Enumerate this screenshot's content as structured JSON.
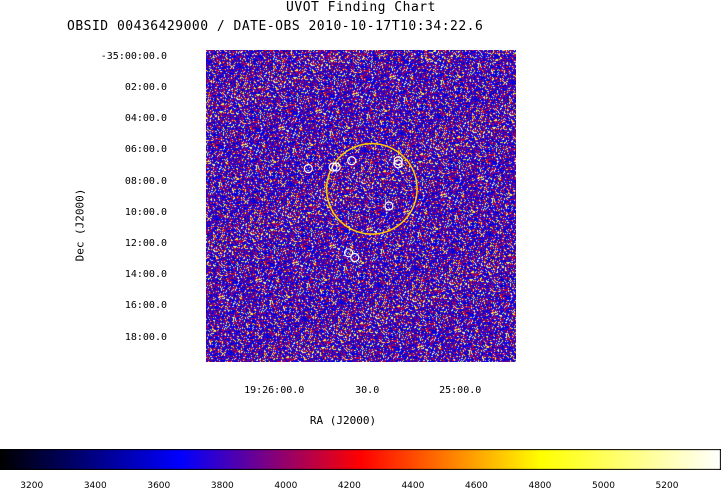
{
  "chart_data": {
    "type": "heatmap",
    "title": "UVOT Finding Chart",
    "subtitle": "OBSID 00436429000 / DATE-OBS 2010-10-17T10:34:22.6",
    "xlabel": "RA (J2000)",
    "ylabel": "Dec (J2000)",
    "x_ticks": [
      "19:26:00.0",
      "30.0",
      "25:00.0"
    ],
    "y_ticks": [
      "-35:00:00.0",
      "02:00.0",
      "04:00.0",
      "06:00.0",
      "08:00.0",
      "10:00.0",
      "12:00.0",
      "14:00.0",
      "16:00.0",
      "18:00.0"
    ],
    "colorbar": {
      "ticks": [
        3200,
        3400,
        3600,
        3800,
        4000,
        4200,
        4400,
        4600,
        4800,
        5000,
        5200
      ],
      "range": [
        3100,
        5370
      ],
      "colors": [
        "#000000",
        "#0000ff",
        "#ff0000",
        "#ffff00",
        "#ffffff"
      ]
    },
    "x_ticks_sec": [
      0,
      -30,
      -60
    ],
    "y_ticks_min": [
      0,
      2,
      4,
      6,
      8,
      10,
      12,
      14,
      16,
      18
    ],
    "x_range_sec": [
      22,
      -78
    ],
    "y_range_min": [
      -0.5,
      19.5
    ],
    "error_circle": {
      "color": "#ffcc00",
      "ra_offset_sec": -31.5,
      "dec_offset_min": 8.4,
      "radius_arcmin": 2.9
    },
    "source_markers": [
      {
        "ra_offset_sec": -11,
        "dec_offset_min": 7.1
      },
      {
        "ra_offset_sec": -19,
        "dec_offset_min": 7.0
      },
      {
        "ra_offset_sec": -20,
        "dec_offset_min": 7.0
      },
      {
        "ra_offset_sec": -25,
        "dec_offset_min": 6.6
      },
      {
        "ra_offset_sec": -40,
        "dec_offset_min": 6.6
      },
      {
        "ra_offset_sec": -40,
        "dec_offset_min": 6.8
      },
      {
        "ra_offset_sec": -37,
        "dec_offset_min": 9.5
      },
      {
        "ra_offset_sec": -24,
        "dec_offset_min": 12.5
      },
      {
        "ra_offset_sec": -26,
        "dec_offset_min": 12.8
      }
    ]
  }
}
